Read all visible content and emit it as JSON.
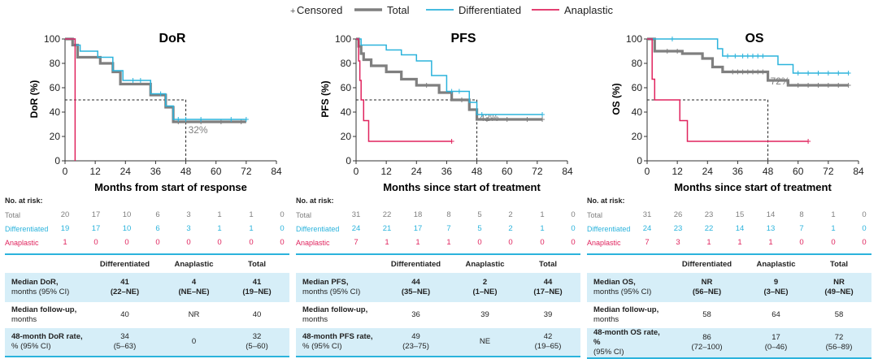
{
  "legend": {
    "censored_symbol": "+",
    "censored_label": "Censored",
    "items": [
      {
        "label": "Total",
        "color": "#7f7f7f"
      },
      {
        "label": "Differentiated",
        "color": "#2bb3dc"
      },
      {
        "label": "Anaplastic",
        "color": "#e0245e"
      }
    ]
  },
  "colors": {
    "total": "#7f7f7f",
    "differentiated": "#2bb3dc",
    "anaplastic": "#e0245e",
    "table_fill": "#d6eef8"
  },
  "chart_data": [
    {
      "type": "line",
      "title": "DoR",
      "xlabel": "Months from start of response",
      "ylabel": "DoR (%)",
      "xlim": [
        0,
        84
      ],
      "ylim": [
        0,
        100
      ],
      "xticks": [
        0,
        12,
        24,
        36,
        48,
        60,
        72,
        84
      ],
      "yticks": [
        0,
        20,
        40,
        60,
        80,
        100
      ],
      "grid": false,
      "annotation": {
        "text": "32%",
        "x": 48,
        "y": 32
      },
      "median_line": {
        "y": 50,
        "x": 48
      },
      "series": [
        {
          "name": "Total",
          "color": "#7f7f7f",
          "steps": [
            [
              0,
              100
            ],
            [
              3,
              95
            ],
            [
              5,
              85
            ],
            [
              14,
              80
            ],
            [
              19,
              73
            ],
            [
              22,
              63
            ],
            [
              34,
              54
            ],
            [
              40,
              44
            ],
            [
              43,
              32
            ],
            [
              72,
              32
            ]
          ],
          "censored": [
            [
              45,
              32
            ],
            [
              54,
              32
            ],
            [
              62,
              32
            ],
            [
              70,
              32
            ]
          ]
        },
        {
          "name": "Differentiated",
          "color": "#2bb3dc",
          "steps": [
            [
              0,
              100
            ],
            [
              4,
              95
            ],
            [
              6,
              90
            ],
            [
              13,
              85
            ],
            [
              19,
              74
            ],
            [
              23,
              66
            ],
            [
              34,
              55
            ],
            [
              40,
              45
            ],
            [
              43,
              34
            ],
            [
              72,
              34
            ]
          ],
          "censored": [
            [
              27,
              66
            ],
            [
              30,
              66
            ],
            [
              38,
              55
            ],
            [
              45,
              34
            ],
            [
              48,
              34
            ],
            [
              54,
              34
            ],
            [
              66,
              34
            ],
            [
              72,
              34
            ]
          ]
        },
        {
          "name": "Anaplastic",
          "color": "#e0245e",
          "steps": [
            [
              0,
              100
            ],
            [
              4,
              100
            ],
            [
              4,
              0
            ]
          ],
          "censored": []
        }
      ]
    },
    {
      "type": "line",
      "title": "PFS",
      "xlabel": "Months since start of treatment",
      "ylabel": "PFS (%)",
      "xlim": [
        0,
        84
      ],
      "ylim": [
        0,
        100
      ],
      "xticks": [
        0,
        12,
        24,
        36,
        48,
        60,
        72,
        84
      ],
      "yticks": [
        0,
        20,
        40,
        60,
        80,
        100
      ],
      "grid": false,
      "annotation": {
        "text": "42%",
        "x": 48,
        "y": 42
      },
      "median_line": {
        "y": 50,
        "x": 48
      },
      "series": [
        {
          "name": "Total",
          "color": "#7f7f7f",
          "steps": [
            [
              0,
              100
            ],
            [
              1,
              94
            ],
            [
              2,
              88
            ],
            [
              3,
              83
            ],
            [
              6,
              78
            ],
            [
              12,
              73
            ],
            [
              18,
              67
            ],
            [
              24,
              62
            ],
            [
              33,
              56
            ],
            [
              38,
              50
            ],
            [
              45,
              42
            ],
            [
              48,
              34
            ],
            [
              74,
              34
            ]
          ],
          "censored": [
            [
              28,
              62
            ],
            [
              42,
              50
            ],
            [
              52,
              34
            ],
            [
              60,
              34
            ],
            [
              68,
              34
            ],
            [
              74,
              34
            ]
          ]
        },
        {
          "name": "Differentiated",
          "color": "#2bb3dc",
          "steps": [
            [
              0,
              100
            ],
            [
              2,
              95
            ],
            [
              12,
              91
            ],
            [
              18,
              87
            ],
            [
              24,
              82
            ],
            [
              30,
              70
            ],
            [
              36,
              57
            ],
            [
              45,
              48
            ],
            [
              48,
              38
            ],
            [
              74,
              38
            ]
          ],
          "censored": [
            [
              38,
              57
            ],
            [
              41,
              57
            ],
            [
              50,
              38
            ],
            [
              74,
              38
            ]
          ]
        },
        {
          "name": "Anaplastic",
          "color": "#e0245e",
          "steps": [
            [
              0,
              100
            ],
            [
              1,
              82
            ],
            [
              1.5,
              66
            ],
            [
              2,
              50
            ],
            [
              3,
              33
            ],
            [
              5,
              16
            ],
            [
              38,
              16
            ]
          ],
          "censored": [
            [
              38,
              16
            ]
          ]
        }
      ]
    },
    {
      "type": "line",
      "title": "OS",
      "xlabel": "Months since start of treatment",
      "ylabel": "OS (%)",
      "xlim": [
        0,
        84
      ],
      "ylim": [
        0,
        100
      ],
      "xticks": [
        0,
        12,
        24,
        36,
        48,
        60,
        72,
        84
      ],
      "yticks": [
        0,
        20,
        40,
        60,
        80,
        100
      ],
      "grid": false,
      "annotation": {
        "text": "72%",
        "x": 48,
        "y": 72
      },
      "median_line": {
        "y": 50,
        "x": 48
      },
      "series": [
        {
          "name": "Total",
          "color": "#7f7f7f",
          "steps": [
            [
              0,
              100
            ],
            [
              3,
              90
            ],
            [
              14,
              88
            ],
            [
              22,
              84
            ],
            [
              26,
              77
            ],
            [
              30,
              73
            ],
            [
              48,
              66
            ],
            [
              56,
              62
            ],
            [
              80,
              62
            ]
          ],
          "censored": [
            [
              8,
              90
            ],
            [
              12,
              90
            ],
            [
              34,
              73
            ],
            [
              36,
              73
            ],
            [
              38,
              73
            ],
            [
              40,
              73
            ],
            [
              42,
              73
            ],
            [
              44,
              73
            ],
            [
              46,
              73
            ],
            [
              60,
              62
            ],
            [
              64,
              62
            ],
            [
              68,
              62
            ],
            [
              72,
              62
            ],
            [
              76,
              62
            ],
            [
              80,
              62
            ]
          ]
        },
        {
          "name": "Differentiated",
          "color": "#2bb3dc",
          "steps": [
            [
              0,
              100
            ],
            [
              24,
              100
            ],
            [
              28,
              92
            ],
            [
              30,
              86
            ],
            [
              48,
              86
            ],
            [
              52,
              79
            ],
            [
              58,
              72
            ],
            [
              80,
              72
            ]
          ],
          "censored": [
            [
              10,
              100
            ],
            [
              32,
              86
            ],
            [
              35,
              86
            ],
            [
              38,
              86
            ],
            [
              40,
              86
            ],
            [
              42,
              86
            ],
            [
              44,
              86
            ],
            [
              46,
              86
            ],
            [
              60,
              72
            ],
            [
              64,
              72
            ],
            [
              68,
              72
            ],
            [
              72,
              72
            ],
            [
              76,
              72
            ],
            [
              80,
              72
            ]
          ]
        },
        {
          "name": "Anaplastic",
          "color": "#e0245e",
          "steps": [
            [
              0,
              100
            ],
            [
              2,
              67
            ],
            [
              3,
              50
            ],
            [
              12,
              50
            ],
            [
              13,
              33
            ],
            [
              16,
              16
            ],
            [
              64,
              16
            ]
          ],
          "censored": [
            [
              64,
              16
            ]
          ]
        }
      ]
    }
  ],
  "panels": [
    {
      "risk_header": "No. at risk:",
      "risk_rows": [
        {
          "label": "Total",
          "color": "#7f7f7f",
          "values": [
            "20",
            "17",
            "10",
            "6",
            "3",
            "1",
            "1",
            "0"
          ]
        },
        {
          "label": "Differentiated",
          "color": "#2bb3dc",
          "values": [
            "19",
            "17",
            "10",
            "6",
            "3",
            "1",
            "1",
            "0"
          ]
        },
        {
          "label": "Anaplastic",
          "color": "#e0245e",
          "values": [
            "1",
            "0",
            "0",
            "0",
            "0",
            "0",
            "0",
            "0"
          ]
        }
      ],
      "table": {
        "headers": [
          "",
          "Differentiated",
          "Anaplastic",
          "Total"
        ],
        "rows": [
          {
            "label1": "Median DoR,",
            "label2": "months (95% CI)",
            "cells": [
              [
                "41",
                "(22–NE)"
              ],
              [
                "4",
                "(NE–NE)"
              ],
              [
                "41",
                "(19–NE)"
              ]
            ]
          },
          {
            "label1": "Median follow-up,",
            "label2": "months",
            "cells": [
              [
                "40",
                ""
              ],
              [
                "NR",
                ""
              ],
              [
                "40",
                ""
              ]
            ]
          },
          {
            "label1": "48-month DoR rate,",
            "label2": "% (95% CI)",
            "cells": [
              [
                "34",
                "(5–63)"
              ],
              [
                "0",
                ""
              ],
              [
                "32",
                "(5–60)"
              ]
            ]
          }
        ]
      }
    },
    {
      "risk_header": "No. at risk:",
      "risk_rows": [
        {
          "label": "Total",
          "color": "#7f7f7f",
          "values": [
            "31",
            "22",
            "18",
            "8",
            "5",
            "2",
            "1",
            "0"
          ]
        },
        {
          "label": "Differentiated",
          "color": "#2bb3dc",
          "values": [
            "24",
            "21",
            "17",
            "7",
            "5",
            "2",
            "1",
            "0"
          ]
        },
        {
          "label": "Anaplastic",
          "color": "#e0245e",
          "values": [
            "7",
            "1",
            "1",
            "1",
            "0",
            "0",
            "0",
            "0"
          ]
        }
      ],
      "table": {
        "headers": [
          "",
          "Differentiated",
          "Anaplastic",
          "Total"
        ],
        "rows": [
          {
            "label1": "Median PFS,",
            "label2": "months (95% CI)",
            "cells": [
              [
                "44",
                "(35–NE)"
              ],
              [
                "2",
                "(1–NE)"
              ],
              [
                "44",
                "(17–NE)"
              ]
            ]
          },
          {
            "label1": "Median follow-up,",
            "label2": "months",
            "cells": [
              [
                "36",
                ""
              ],
              [
                "39",
                ""
              ],
              [
                "39",
                ""
              ]
            ]
          },
          {
            "label1": "48-month PFS rate,",
            "label2": "% (95% CI)",
            "cells": [
              [
                "49",
                "(23–75)"
              ],
              [
                "NE",
                ""
              ],
              [
                "42",
                "(19–65)"
              ]
            ]
          }
        ]
      }
    },
    {
      "risk_header": "No. at risk:",
      "risk_rows": [
        {
          "label": "Total",
          "color": "#7f7f7f",
          "values": [
            "31",
            "26",
            "23",
            "15",
            "14",
            "8",
            "1",
            "0"
          ]
        },
        {
          "label": "Differentiated",
          "color": "#2bb3dc",
          "values": [
            "24",
            "23",
            "22",
            "14",
            "13",
            "7",
            "1",
            "0"
          ]
        },
        {
          "label": "Anaplastic",
          "color": "#e0245e",
          "values": [
            "7",
            "3",
            "1",
            "1",
            "1",
            "0",
            "0",
            "0"
          ]
        }
      ],
      "table": {
        "headers": [
          "",
          "Differentiated",
          "Anaplastic",
          "Total"
        ],
        "rows": [
          {
            "label1": "Median OS,",
            "label2": "months (95% CI)",
            "cells": [
              [
                "NR",
                "(56–NE)"
              ],
              [
                "9",
                "(3–NE)"
              ],
              [
                "NR",
                "(49–NE)"
              ]
            ]
          },
          {
            "label1": "Median follow-up,",
            "label2": "months",
            "cells": [
              [
                "58",
                ""
              ],
              [
                "64",
                ""
              ],
              [
                "58",
                ""
              ]
            ]
          },
          {
            "label1": "48-month OS rate, %",
            "label2": "(95% CI)",
            "cells": [
              [
                "86",
                "(72–100)"
              ],
              [
                "17",
                "(0–46)"
              ],
              [
                "72",
                "(56–89)"
              ]
            ]
          }
        ]
      }
    }
  ]
}
